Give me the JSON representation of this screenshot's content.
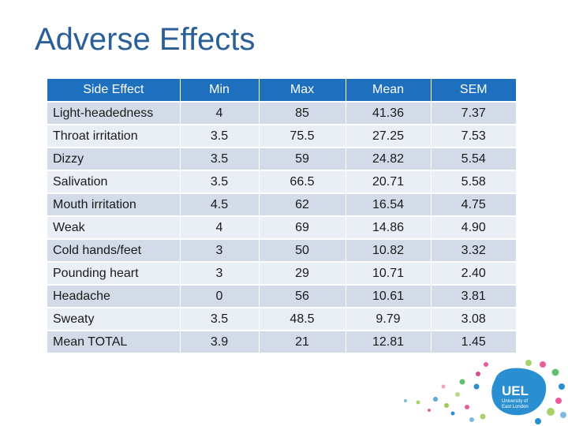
{
  "title": "Adverse Effects",
  "table": {
    "headers": [
      "Side Effect",
      "Min",
      "Max",
      "Mean",
      "SEM"
    ],
    "rows": [
      [
        "Light-headedness",
        "4",
        "85",
        "41.36",
        "7.37"
      ],
      [
        "Throat irritation",
        "3.5",
        "75.5",
        "27.25",
        "7.53"
      ],
      [
        "Dizzy",
        "3.5",
        "59",
        "24.82",
        "5.54"
      ],
      [
        "Salivation",
        "3.5",
        "66.5",
        "20.71",
        "5.58"
      ],
      [
        "Mouth irritation",
        "4.5",
        "62",
        "16.54",
        "4.75"
      ],
      [
        "Weak",
        "4",
        "69",
        "14.86",
        "4.90"
      ],
      [
        "Cold hands/feet",
        "3",
        "50",
        "10.82",
        "3.32"
      ],
      [
        "Pounding heart",
        "3",
        "29",
        "10.71",
        "2.40"
      ],
      [
        "Headache",
        "0",
        "56",
        "10.61",
        "3.81"
      ],
      [
        "Sweaty",
        "3.5",
        "48.5",
        "9.79",
        "3.08"
      ],
      [
        "Mean TOTAL",
        "3.9",
        "21",
        "12.81",
        "1.45"
      ]
    ]
  },
  "logo": {
    "name": "UEL",
    "line1": "University of",
    "line2": "East London"
  },
  "colors": {
    "title": "#2b5f97",
    "header_bg": "#1f6fbf",
    "row_odd": "#d3dbe9",
    "row_even": "#eaeef5",
    "logo_blue": "#2a8fd0"
  }
}
